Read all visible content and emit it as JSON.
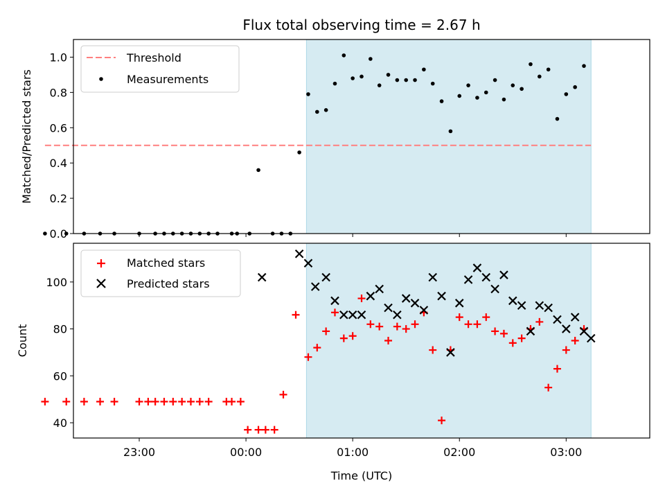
{
  "chart_data": [
    {
      "type": "scatter",
      "title": "Flux total observing time = 2.67 h",
      "ylabel": "Matched/Predicted stars",
      "ylim": [
        0,
        1.1
      ],
      "yticks": [
        "0.0",
        "0.2",
        "0.4",
        "0.6",
        "0.8",
        "1.0"
      ],
      "x_range": [
        "22:23",
        "03:47"
      ],
      "shaded_span": [
        "00:34",
        "03:14"
      ],
      "shade_color": "#add8e6",
      "threshold": {
        "name": "Threshold",
        "value": 0.5,
        "x_start": "22:07",
        "x_end": "03:14",
        "color": "#ff7f7f"
      },
      "legend_position": "upper left",
      "series": [
        {
          "name": "Measurements",
          "color": "#000000",
          "x": [
            "22:07",
            "22:19",
            "22:29",
            "22:38",
            "22:46",
            "23:00",
            "23:09",
            "23:14",
            "23:19",
            "23:24",
            "23:29",
            "23:34",
            "23:39",
            "23:44",
            "23:52",
            "23:55",
            "00:02",
            "00:07",
            "00:15",
            "00:20",
            "00:25",
            "00:30",
            "00:35",
            "00:40",
            "00:45",
            "00:50",
            "00:55",
            "01:00",
            "01:05",
            "01:10",
            "01:15",
            "01:20",
            "01:25",
            "01:30",
            "01:35",
            "01:40",
            "01:45",
            "01:50",
            "01:55",
            "02:00",
            "02:05",
            "02:10",
            "02:15",
            "02:20",
            "02:25",
            "02:30",
            "02:35",
            "02:40",
            "02:45",
            "02:50",
            "02:55",
            "03:00",
            "03:05",
            "03:10"
          ],
          "y": [
            0,
            0,
            0,
            0,
            0,
            0,
            0,
            0,
            0,
            0,
            0,
            0,
            0,
            0,
            0,
            0,
            0,
            0.36,
            0,
            0,
            0,
            0.46,
            0.79,
            0.69,
            0.7,
            0.85,
            1.01,
            0.88,
            0.89,
            0.99,
            0.84,
            0.9,
            0.87,
            0.87,
            0.87,
            0.93,
            0.85,
            0.75,
            0.58,
            0.78,
            0.84,
            0.77,
            0.8,
            0.87,
            0.76,
            0.84,
            0.82,
            0.96,
            0.89,
            0.93,
            0.65,
            0.79,
            0.83,
            0.95
          ]
        }
      ]
    },
    {
      "type": "scatter",
      "xlabel": "Time (UTC)",
      "ylabel": "Count",
      "ylim": [
        33.5,
        116.5
      ],
      "yticks": [
        "40",
        "60",
        "80",
        "100"
      ],
      "xticks": [
        "23:00",
        "00:00",
        "01:00",
        "02:00",
        "03:00"
      ],
      "x_range": [
        "22:23",
        "03:47"
      ],
      "shaded_span": [
        "00:34",
        "03:14"
      ],
      "shade_color": "#add8e6",
      "legend_position": "upper left",
      "series": [
        {
          "name": "Matched stars",
          "marker": "+",
          "color": "#ff0000",
          "x": [
            "22:07",
            "22:19",
            "22:29",
            "22:38",
            "22:46",
            "23:00",
            "23:05",
            "23:09",
            "23:14",
            "23:19",
            "23:24",
            "23:29",
            "23:34",
            "23:39",
            "23:49",
            "23:52",
            "23:57",
            "00:01",
            "00:07",
            "00:11",
            "00:16",
            "00:21",
            "00:28",
            "00:35",
            "00:40",
            "00:45",
            "00:50",
            "00:55",
            "01:00",
            "01:05",
            "01:10",
            "01:15",
            "01:20",
            "01:25",
            "01:30",
            "01:35",
            "01:40",
            "01:45",
            "01:50",
            "01:55",
            "02:00",
            "02:05",
            "02:10",
            "02:15",
            "02:20",
            "02:25",
            "02:30",
            "02:35",
            "02:40",
            "02:45",
            "02:50",
            "02:55",
            "03:00",
            "03:05",
            "03:10"
          ],
          "y": [
            49,
            49,
            49,
            49,
            49,
            49,
            49,
            49,
            49,
            49,
            49,
            49,
            49,
            49,
            49,
            49,
            49,
            37,
            37,
            37,
            37,
            52,
            86,
            68,
            72,
            79,
            87,
            76,
            77,
            93,
            82,
            81,
            75,
            81,
            80,
            82,
            87,
            71,
            41,
            71,
            85,
            82,
            82,
            85,
            79,
            78,
            74,
            76,
            80,
            83,
            55,
            63,
            71,
            75,
            80
          ]
        },
        {
          "name": "Predicted stars",
          "marker": "x",
          "color": "#000000",
          "x": [
            "00:09",
            "00:30",
            "00:35",
            "00:39",
            "00:45",
            "00:50",
            "00:55",
            "01:00",
            "01:05",
            "01:10",
            "01:15",
            "01:20",
            "01:25",
            "01:30",
            "01:35",
            "01:40",
            "01:45",
            "01:50",
            "01:55",
            "02:00",
            "02:05",
            "02:10",
            "02:15",
            "02:20",
            "02:25",
            "02:30",
            "02:35",
            "02:40",
            "02:45",
            "02:50",
            "02:55",
            "03:00",
            "03:05",
            "03:10",
            "03:14"
          ],
          "y": [
            102,
            112,
            108,
            98,
            102,
            92,
            86,
            86,
            86,
            94,
            97,
            89,
            86,
            93,
            91,
            88,
            102,
            94,
            70,
            91,
            101,
            106,
            102,
            97,
            103,
            92,
            90,
            79,
            90,
            89,
            84,
            80,
            85,
            79,
            76
          ]
        }
      ]
    }
  ]
}
